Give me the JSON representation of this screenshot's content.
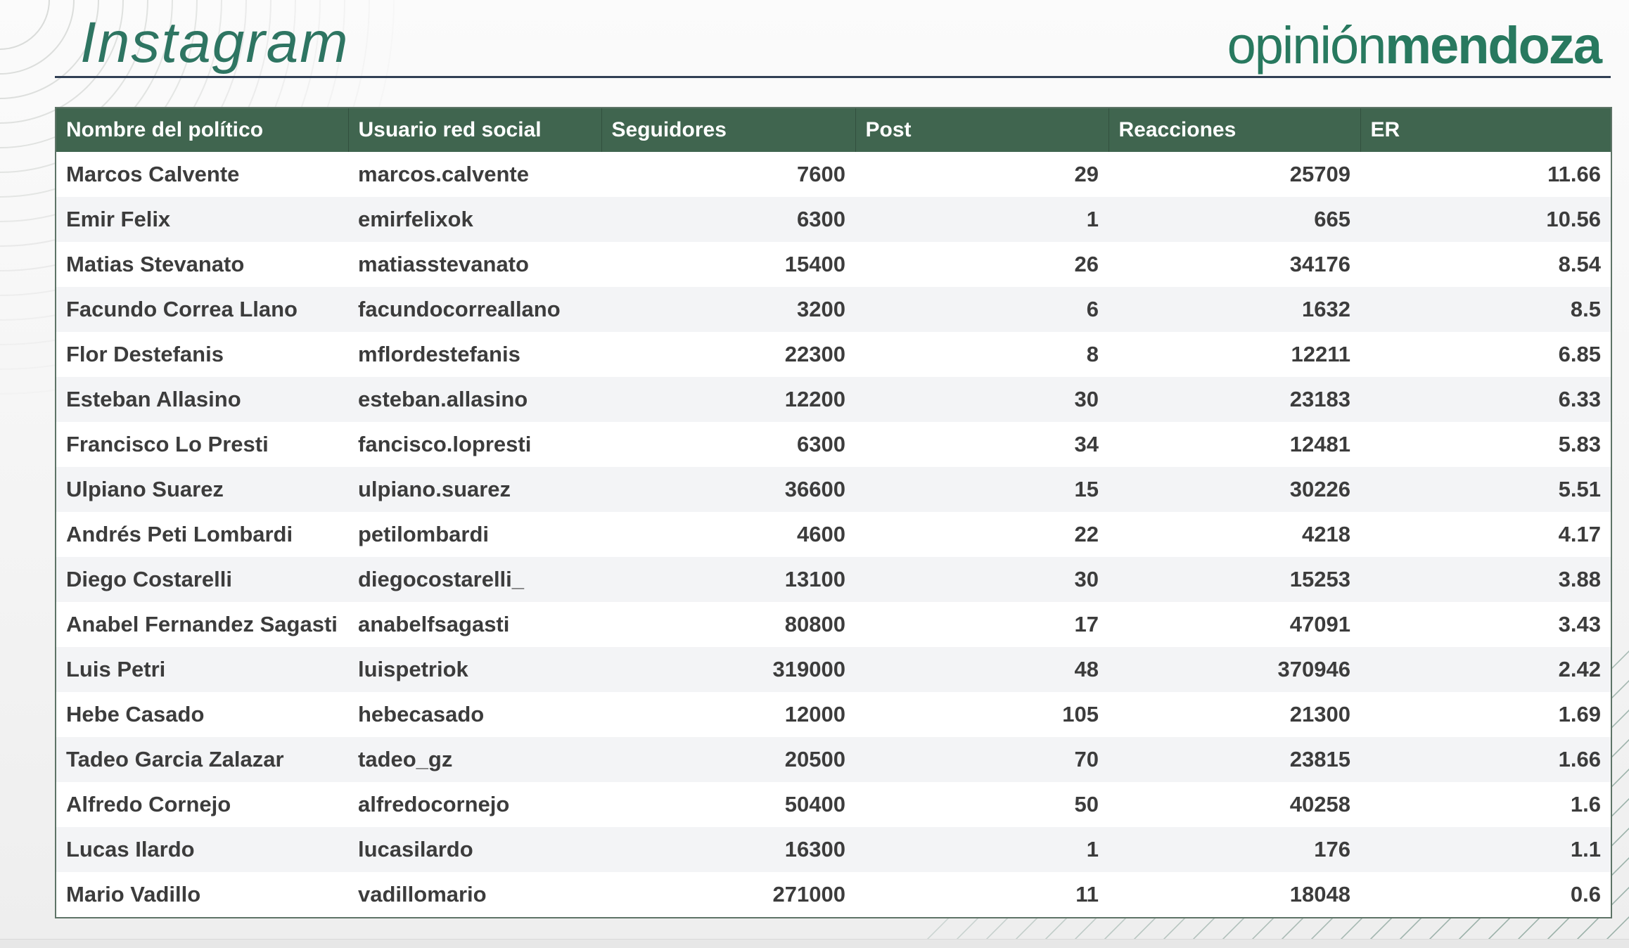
{
  "page": {
    "title": "Instagram",
    "brand": {
      "light": "opinión",
      "bold": "mendoza"
    }
  },
  "colors": {
    "header_green": "#40654F",
    "title_green": "#2E7562",
    "brand_green": "#28795F",
    "rule_navy": "#303F54",
    "row_alt_gray": "#F3F4F6",
    "cell_text": "#3C3C3C",
    "table_border": "#5E7467"
  },
  "table": {
    "columns": [
      "Nombre del político",
      "Usuario red social",
      "Seguidores",
      "Post",
      "Reacciones",
      "ER"
    ],
    "rows": [
      [
        "Marcos Calvente",
        "marcos.calvente",
        "7600",
        "29",
        "25709",
        "11.66"
      ],
      [
        "Emir Felix",
        "emirfelixok",
        "6300",
        "1",
        "665",
        "10.56"
      ],
      [
        "Matias Stevanato",
        "matiasstevanato",
        "15400",
        "26",
        "34176",
        "8.54"
      ],
      [
        "Facundo Correa Llano",
        "facundocorreallano",
        "3200",
        "6",
        "1632",
        "8.5"
      ],
      [
        "Flor Destefanis",
        "mflordestefanis",
        "22300",
        "8",
        "12211",
        "6.85"
      ],
      [
        "Esteban Allasino",
        "esteban.allasino",
        "12200",
        "30",
        "23183",
        "6.33"
      ],
      [
        "Francisco Lo Presti",
        "fancisco.lopresti",
        "6300",
        "34",
        "12481",
        "5.83"
      ],
      [
        "Ulpiano Suarez",
        "ulpiano.suarez",
        "36600",
        "15",
        "30226",
        "5.51"
      ],
      [
        "Andrés Peti Lombardi",
        "petilombardi",
        "4600",
        "22",
        "4218",
        "4.17"
      ],
      [
        "Diego Costarelli",
        "diegocostarelli_",
        "13100",
        "30",
        "15253",
        "3.88"
      ],
      [
        "Anabel Fernandez Sagasti",
        "anabelfsagasti",
        "80800",
        "17",
        "47091",
        "3.43"
      ],
      [
        "Luis Petri",
        "luispetriok",
        "319000",
        "48",
        "370946",
        "2.42"
      ],
      [
        "Hebe Casado",
        "hebecasado",
        "12000",
        "105",
        "21300",
        "1.69"
      ],
      [
        "Tadeo Garcia Zalazar",
        "tadeo_gz",
        "20500",
        "70",
        "23815",
        "1.66"
      ],
      [
        "Alfredo Cornejo",
        "alfredocornejo",
        "50400",
        "50",
        "40258",
        "1.6"
      ],
      [
        "Lucas Ilardo",
        "lucasilardo",
        "16300",
        "1",
        "176",
        "1.1"
      ],
      [
        "Mario Vadillo",
        "vadillomario",
        "271000",
        "11",
        "18048",
        "0.6"
      ]
    ]
  }
}
